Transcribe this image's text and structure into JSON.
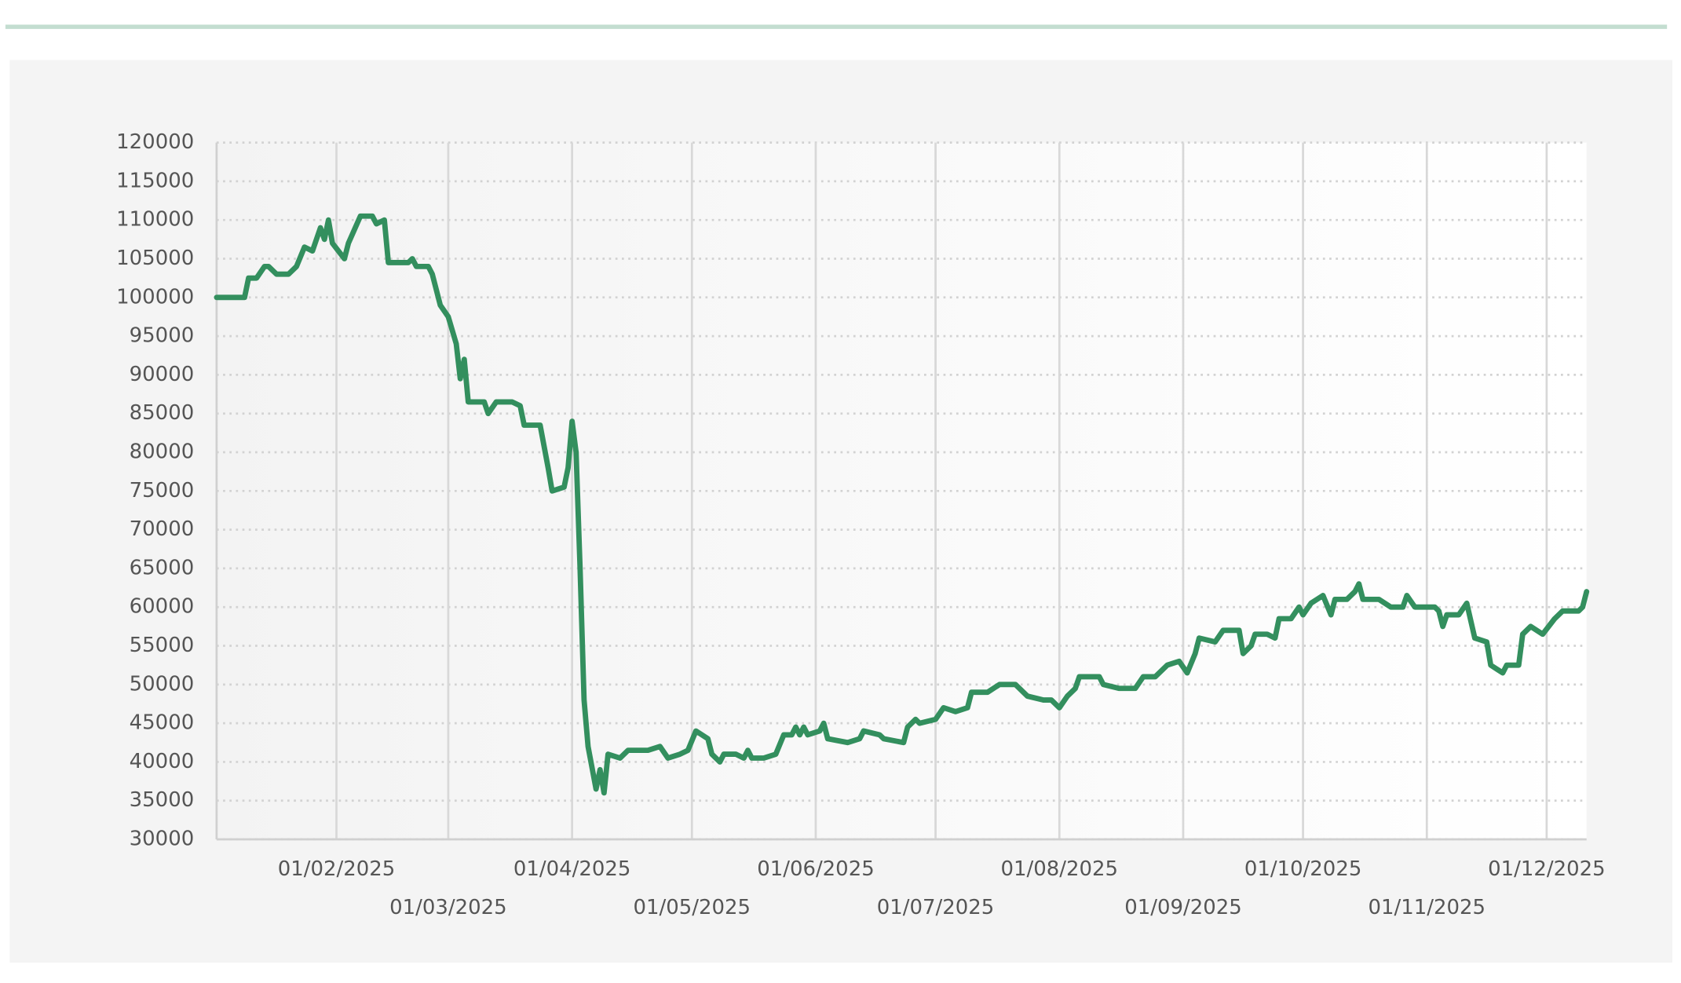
{
  "chart_data": {
    "type": "line",
    "x": [
      "2025-01-02",
      "2025-01-09",
      "2025-01-10",
      "2025-01-12",
      "2025-01-14",
      "2025-01-15",
      "2025-01-17",
      "2025-01-20",
      "2025-01-22",
      "2025-01-24",
      "2025-01-26",
      "2025-01-28",
      "2025-01-29",
      "2025-01-30",
      "2025-01-31",
      "2025-02-03",
      "2025-02-04",
      "2025-02-07",
      "2025-02-10",
      "2025-02-11",
      "2025-02-13",
      "2025-02-14",
      "2025-02-17",
      "2025-02-19",
      "2025-02-20",
      "2025-02-21",
      "2025-02-24",
      "2025-02-25",
      "2025-02-26",
      "2025-02-27",
      "2025-03-01",
      "2025-03-03",
      "2025-03-04",
      "2025-03-05",
      "2025-03-06",
      "2025-03-10",
      "2025-03-11",
      "2025-03-13",
      "2025-03-17",
      "2025-03-19",
      "2025-03-20",
      "2025-03-24",
      "2025-03-26",
      "2025-03-27",
      "2025-03-30",
      "2025-03-31",
      "2025-04-01",
      "2025-04-02",
      "2025-04-03",
      "2025-04-04",
      "2025-04-05",
      "2025-04-07",
      "2025-04-08",
      "2025-04-09",
      "2025-04-10",
      "2025-04-13",
      "2025-04-15",
      "2025-04-20",
      "2025-04-23",
      "2025-04-25",
      "2025-04-28",
      "2025-04-30",
      "2025-05-02",
      "2025-05-05",
      "2025-05-06",
      "2025-05-08",
      "2025-05-09",
      "2025-05-12",
      "2025-05-14",
      "2025-05-15",
      "2025-05-16",
      "2025-05-19",
      "2025-05-22",
      "2025-05-24",
      "2025-05-26",
      "2025-05-27",
      "2025-05-28",
      "2025-05-29",
      "2025-05-30",
      "2025-06-02",
      "2025-06-03",
      "2025-06-04",
      "2025-06-09",
      "2025-06-12",
      "2025-06-13",
      "2025-06-17",
      "2025-06-18",
      "2025-06-23",
      "2025-06-24",
      "2025-06-26",
      "2025-06-27",
      "2025-07-01",
      "2025-07-03",
      "2025-07-06",
      "2025-07-09",
      "2025-07-10",
      "2025-07-14",
      "2025-07-17",
      "2025-07-21",
      "2025-07-24",
      "2025-07-28",
      "2025-07-30",
      "2025-08-01",
      "2025-08-03",
      "2025-08-05",
      "2025-08-06",
      "2025-08-11",
      "2025-08-12",
      "2025-08-16",
      "2025-08-20",
      "2025-08-22",
      "2025-08-25",
      "2025-08-28",
      "2025-08-31",
      "2025-09-02",
      "2025-09-04",
      "2025-09-05",
      "2025-09-09",
      "2025-09-11",
      "2025-09-15",
      "2025-09-16",
      "2025-09-18",
      "2025-09-19",
      "2025-09-22",
      "2025-09-24",
      "2025-09-25",
      "2025-09-28",
      "2025-09-30",
      "2025-10-01",
      "2025-10-03",
      "2025-10-06",
      "2025-10-08",
      "2025-10-09",
      "2025-10-12",
      "2025-10-14",
      "2025-10-15",
      "2025-10-16",
      "2025-10-20",
      "2025-10-23",
      "2025-10-26",
      "2025-10-27",
      "2025-10-29",
      "2025-11-03",
      "2025-11-04",
      "2025-11-05",
      "2025-11-06",
      "2025-11-09",
      "2025-11-11",
      "2025-11-13",
      "2025-11-16",
      "2025-11-17",
      "2025-11-20",
      "2025-11-21",
      "2025-11-24",
      "2025-11-25",
      "2025-11-27",
      "2025-11-30",
      "2025-12-03",
      "2025-12-05",
      "2025-12-09",
      "2025-12-10",
      "2025-12-11"
    ],
    "values": [
      100000,
      100000,
      102500,
      102500,
      104000,
      104000,
      103000,
      103000,
      104000,
      106500,
      106000,
      109000,
      107500,
      110000,
      107000,
      105000,
      107000,
      110500,
      110500,
      109500,
      110000,
      104500,
      104500,
      104500,
      105000,
      104000,
      104000,
      103000,
      101000,
      99000,
      97500,
      94000,
      89500,
      92000,
      86500,
      86500,
      85000,
      86500,
      86500,
      86000,
      83500,
      83500,
      78000,
      75000,
      75500,
      78000,
      84000,
      80000,
      65000,
      48000,
      42000,
      36500,
      39000,
      36000,
      41000,
      40500,
      41500,
      41500,
      42000,
      40500,
      41000,
      41500,
      44000,
      43000,
      41000,
      40000,
      41000,
      41000,
      40500,
      41500,
      40500,
      40500,
      41000,
      43500,
      43500,
      44500,
      43500,
      44500,
      43500,
      44000,
      45000,
      43000,
      42500,
      43000,
      44000,
      43500,
      43000,
      42500,
      44500,
      45500,
      45000,
      45500,
      47000,
      46500,
      47000,
      49000,
      49000,
      50000,
      50000,
      48500,
      48000,
      48000,
      47000,
      48500,
      49500,
      51000,
      51000,
      50000,
      49500,
      49500,
      51000,
      51000,
      52500,
      53000,
      51500,
      54000,
      56000,
      55500,
      57000,
      57000,
      54000,
      55000,
      56500,
      56500,
      56000,
      58500,
      58500,
      60000,
      59000,
      60500,
      61500,
      59000,
      61000,
      61000,
      62000,
      63000,
      61000,
      61000,
      60000,
      60000,
      61500,
      60000,
      60000,
      59500,
      57500,
      59000,
      59000,
      60500,
      56000,
      55500,
      52500,
      51500,
      52500,
      52500,
      56500,
      57500,
      56500,
      58500,
      59500,
      59500,
      60000,
      62000
    ],
    "color": "#338f5e",
    "xlim": [
      "2025-01-02",
      "2025-12-11"
    ],
    "xticks": [
      {
        "value": "2025-02-01",
        "label": "01/02/2025"
      },
      {
        "value": "2025-03-01",
        "label": "01/03/2025"
      },
      {
        "value": "2025-04-01",
        "label": "01/04/2025"
      },
      {
        "value": "2025-05-01",
        "label": "01/05/2025"
      },
      {
        "value": "2025-06-01",
        "label": "01/06/2025"
      },
      {
        "value": "2025-07-01",
        "label": "01/07/2025"
      },
      {
        "value": "2025-08-01",
        "label": "01/08/2025"
      },
      {
        "value": "2025-09-01",
        "label": "01/09/2025"
      },
      {
        "value": "2025-10-01",
        "label": "01/10/2025"
      },
      {
        "value": "2025-11-01",
        "label": "01/11/2025"
      },
      {
        "value": "2025-12-01",
        "label": "01/12/2025"
      }
    ],
    "ylim": [
      30000,
      120000
    ],
    "yticks": [
      30000,
      35000,
      40000,
      45000,
      50000,
      55000,
      60000,
      65000,
      70000,
      75000,
      80000,
      85000,
      90000,
      95000,
      100000,
      105000,
      110000,
      115000,
      120000
    ],
    "grid": true
  }
}
